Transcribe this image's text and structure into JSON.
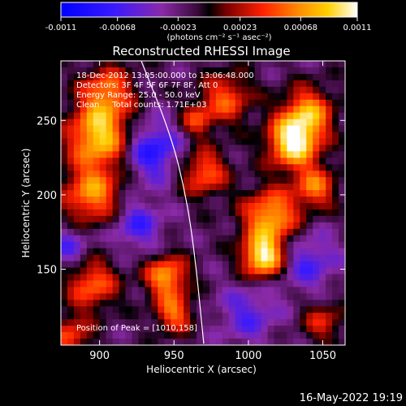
{
  "chart_data": {
    "type": "heatmap",
    "title": "Reconstructed RHESSI Image",
    "xlabel": "Heliocentric X (arcsec)",
    "ylabel": "Heliocentric Y (arcsec)",
    "xlim": [
      874,
      1065
    ],
    "ylim": [
      99,
      290
    ],
    "x_ticks": [
      900,
      950,
      1000,
      1050
    ],
    "y_ticks": [
      150,
      200,
      250
    ],
    "colorbar": {
      "range": [
        -0.0011,
        0.0011
      ],
      "tick_values": [
        -0.0011,
        -0.00068,
        -0.00023,
        0.00023,
        0.00068,
        0.0011
      ],
      "tick_labels": [
        "-0.0011",
        "-0.00068",
        "-0.00023",
        "0.00023",
        "0.00068",
        "0.0011"
      ],
      "units_label": "(photons cm⁻² s⁻¹ asec⁻²)"
    },
    "annotations": [
      "18-Dec-2012 13:05:00.000 to 13:06:48.000",
      "Detectors: 3F 4F 5F 6F 7F 8F, Att 0",
      "Energy Range: 25.0 - 50.0 keV",
      "Clean     Total counts: 1.71E+03"
    ],
    "peak_label": "Position of Peak = [1010,158]",
    "peak_position": [
      1010,
      158
    ],
    "limb_curve": [
      [
        928,
        290
      ],
      [
        948,
        240
      ],
      [
        958,
        200
      ],
      [
        964,
        160
      ],
      [
        970,
        100
      ]
    ],
    "hot_spots": [
      {
        "x": 1030,
        "y": 235,
        "amplitude": 1.0,
        "sigma": 12
      },
      {
        "x": 1040,
        "y": 255,
        "amplitude": 0.7,
        "sigma": 12
      },
      {
        "x": 1010,
        "y": 158,
        "amplitude": 1.0,
        "sigma": 10
      },
      {
        "x": 1015,
        "y": 185,
        "amplitude": 0.8,
        "sigma": 13
      },
      {
        "x": 1045,
        "y": 205,
        "amplitude": 0.6,
        "sigma": 10
      },
      {
        "x": 900,
        "y": 240,
        "amplitude": 0.9,
        "sigma": 15
      },
      {
        "x": 895,
        "y": 200,
        "amplitude": 0.7,
        "sigma": 14
      },
      {
        "x": 905,
        "y": 270,
        "amplitude": 0.6,
        "sigma": 12
      },
      {
        "x": 895,
        "y": 140,
        "amplitude": 0.6,
        "sigma": 12
      },
      {
        "x": 945,
        "y": 145,
        "amplitude": 0.75,
        "sigma": 10
      },
      {
        "x": 950,
        "y": 120,
        "amplitude": 0.6,
        "sigma": 9
      },
      {
        "x": 970,
        "y": 215,
        "amplitude": 0.6,
        "sigma": 11
      },
      {
        "x": 985,
        "y": 265,
        "amplitude": 0.55,
        "sigma": 12
      },
      {
        "x": 965,
        "y": 250,
        "amplitude": 0.45,
        "sigma": 8
      },
      {
        "x": 880,
        "y": 105,
        "amplitude": 0.5,
        "sigma": 10
      },
      {
        "x": 1050,
        "y": 115,
        "amplitude": 0.4,
        "sigma": 10
      }
    ],
    "cold_spots": [
      {
        "x": 935,
        "y": 230,
        "amplitude": 0.8,
        "sigma": 14
      },
      {
        "x": 925,
        "y": 180,
        "amplitude": 0.6,
        "sigma": 12
      },
      {
        "x": 1040,
        "y": 155,
        "amplitude": 0.55,
        "sigma": 14
      },
      {
        "x": 1000,
        "y": 120,
        "amplitude": 0.5,
        "sigma": 14
      },
      {
        "x": 880,
        "y": 165,
        "amplitude": 0.5,
        "sigma": 10
      }
    ],
    "colors": {
      "background": "#000000",
      "limb": "#ffffff",
      "text": "#ffffff"
    }
  },
  "footer_timestamp": "16-May-2022 19:19"
}
